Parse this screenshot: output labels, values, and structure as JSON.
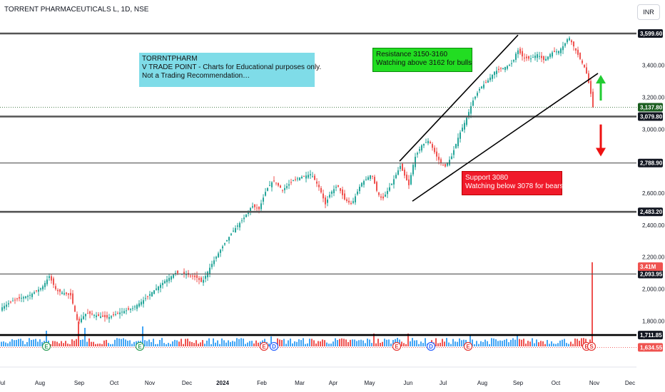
{
  "header": {
    "symbol_title": "TORRENT PHARMACEUTICALS L, 1D, NSE",
    "currency_button": "INR"
  },
  "annotations": {
    "info_box": [
      "TORRNTPHARM",
      "V TRADE POINT - Charts for Educational purposes only.",
      "Not a Trading Recommendation…"
    ],
    "resistance_box": [
      "Resistance 3150-3160",
      "Watching above 3162 for bulls"
    ],
    "support_box": [
      "Support 3080",
      "Watching below 3078 for bears"
    ]
  },
  "colors": {
    "up_candle": "#26a69a",
    "down_candle": "#ef5350",
    "volume_up": "#42a5f5",
    "volume_down": "#ef5350",
    "level_line": "#555555",
    "trendline": "#000000",
    "arrow_up": "#22cc33",
    "arrow_down": "#ee1111"
  },
  "chart_data": {
    "type": "candlestick",
    "price_axis": {
      "ylim": [
        1600,
        3640
      ],
      "tick_labels": [
        "3,400.00",
        "3,200.00",
        "3,000.00",
        "2,600.00",
        "2,400.00",
        "2,200.00",
        "2,000.00",
        "1,800.00"
      ],
      "tick_values": [
        3400,
        3200,
        3000,
        2600,
        2400,
        2200,
        2000,
        1800
      ]
    },
    "time_axis": {
      "labels": [
        "Jul",
        "Aug",
        "Sep",
        "Oct",
        "Nov",
        "Dec",
        "2024",
        "Feb",
        "Mar",
        "Apr",
        "May",
        "Jun",
        "Jul",
        "Aug",
        "Sep",
        "Oct",
        "Nov",
        "Dec"
      ],
      "label_bars": [
        2,
        56,
        111,
        160,
        210,
        262,
        312,
        367,
        420,
        467,
        518,
        572,
        621,
        676,
        726,
        779,
        833,
        883
      ]
    },
    "price_levels": [
      {
        "value": 3599.6,
        "label": "3,599.60",
        "style": "thick"
      },
      {
        "value": 3079.8,
        "label": "3,079.80",
        "style": "thick"
      },
      {
        "value": 2788.9,
        "label": "2,788.90",
        "style": "thin"
      },
      {
        "value": 2483.2,
        "label": "2,483.20",
        "style": "thick"
      },
      {
        "value": 2093.95,
        "label": "2,093.95",
        "style": "thin"
      },
      {
        "value": 1711.85,
        "label": "1,711.85",
        "style": "thick-black"
      }
    ],
    "badges": [
      {
        "value": 3137.8,
        "label": "3,137.80",
        "bg": "#1b5e20"
      },
      {
        "value": 1634.55,
        "label": "1,634.55",
        "bg": "#ef5350"
      },
      {
        "value": 2140,
        "label": "3.41M",
        "bg": "#ef5350"
      }
    ],
    "trendlines": [
      {
        "from": [
          560,
          2800
        ],
        "to": [
          726,
          3590
        ]
      },
      {
        "from": [
          578,
          2550
        ],
        "to": [
          838,
          3350
        ]
      }
    ],
    "price_path": [
      [
        0,
        1880
      ],
      [
        18,
        1930
      ],
      [
        40,
        1960
      ],
      [
        58,
        2010
      ],
      [
        68,
        2080
      ],
      [
        78,
        1990
      ],
      [
        98,
        1960
      ],
      [
        108,
        1790
      ],
      [
        120,
        1850
      ],
      [
        138,
        1830
      ],
      [
        150,
        1820
      ],
      [
        165,
        1850
      ],
      [
        185,
        1880
      ],
      [
        200,
        1930
      ],
      [
        212,
        1980
      ],
      [
        230,
        2050
      ],
      [
        245,
        2100
      ],
      [
        262,
        2090
      ],
      [
        275,
        2070
      ],
      [
        282,
        2040
      ],
      [
        295,
        2150
      ],
      [
        310,
        2260
      ],
      [
        325,
        2360
      ],
      [
        340,
        2440
      ],
      [
        352,
        2520
      ],
      [
        362,
        2500
      ],
      [
        372,
        2620
      ],
      [
        382,
        2680
      ],
      [
        395,
        2620
      ],
      [
        410,
        2680
      ],
      [
        420,
        2700
      ],
      [
        435,
        2720
      ],
      [
        447,
        2630
      ],
      [
        455,
        2530
      ],
      [
        462,
        2600
      ],
      [
        472,
        2650
      ],
      [
        482,
        2560
      ],
      [
        492,
        2530
      ],
      [
        505,
        2660
      ],
      [
        520,
        2720
      ],
      [
        528,
        2600
      ],
      [
        535,
        2560
      ],
      [
        548,
        2660
      ],
      [
        560,
        2770
      ],
      [
        572,
        2650
      ],
      [
        580,
        2820
      ],
      [
        590,
        2900
      ],
      [
        600,
        2930
      ],
      [
        612,
        2820
      ],
      [
        622,
        2760
      ],
      [
        632,
        2830
      ],
      [
        642,
        2960
      ],
      [
        652,
        3060
      ],
      [
        662,
        3180
      ],
      [
        672,
        3260
      ],
      [
        682,
        3300
      ],
      [
        692,
        3360
      ],
      [
        702,
        3380
      ],
      [
        712,
        3400
      ],
      [
        718,
        3420
      ],
      [
        724,
        3500
      ],
      [
        732,
        3450
      ],
      [
        742,
        3440
      ],
      [
        752,
        3470
      ],
      [
        762,
        3430
      ],
      [
        772,
        3480
      ],
      [
        782,
        3490
      ],
      [
        790,
        3530
      ],
      [
        796,
        3580
      ],
      [
        804,
        3510
      ],
      [
        812,
        3440
      ],
      [
        820,
        3370
      ],
      [
        826,
        3250
      ],
      [
        830,
        3137.8
      ]
    ],
    "volume_spikes": [
      {
        "bar": 65,
        "h": 22
      },
      {
        "bar": 110,
        "h": 35
      },
      {
        "bar": 117,
        "h": 26
      },
      {
        "bar": 200,
        "h": 28
      },
      {
        "bar": 380,
        "h": 14
      },
      {
        "bar": 522,
        "h": 18
      },
      {
        "bar": 557,
        "h": 12
      },
      {
        "bar": 571,
        "h": 18
      },
      {
        "bar": 658,
        "h": 17
      },
      {
        "bar": 725,
        "h": 15
      },
      {
        "bar": 828,
        "h": 118
      }
    ],
    "event_markers": [
      {
        "bar": 65,
        "label": "E",
        "color": "#2e9e5a"
      },
      {
        "bar": 196,
        "label": "E",
        "color": "#2e9e5a"
      },
      {
        "bar": 370,
        "label": "E",
        "color": "#e53935"
      },
      {
        "bar": 384,
        "label": "D",
        "color": "#2962ff"
      },
      {
        "bar": 556,
        "label": "E",
        "color": "#e53935"
      },
      {
        "bar": 604,
        "label": "D",
        "color": "#2962ff"
      },
      {
        "bar": 656,
        "label": "E",
        "color": "#e53935"
      },
      {
        "bar": 822,
        "label": "E",
        "color": "#e53935"
      },
      {
        "bar": 829,
        "label": "S",
        "color": "#e53935"
      }
    ],
    "arrows": [
      {
        "direction": "up",
        "bar": 842,
        "from": 3180,
        "to": 3340
      },
      {
        "direction": "down",
        "bar": 842,
        "from": 3030,
        "to": 2830
      }
    ]
  }
}
